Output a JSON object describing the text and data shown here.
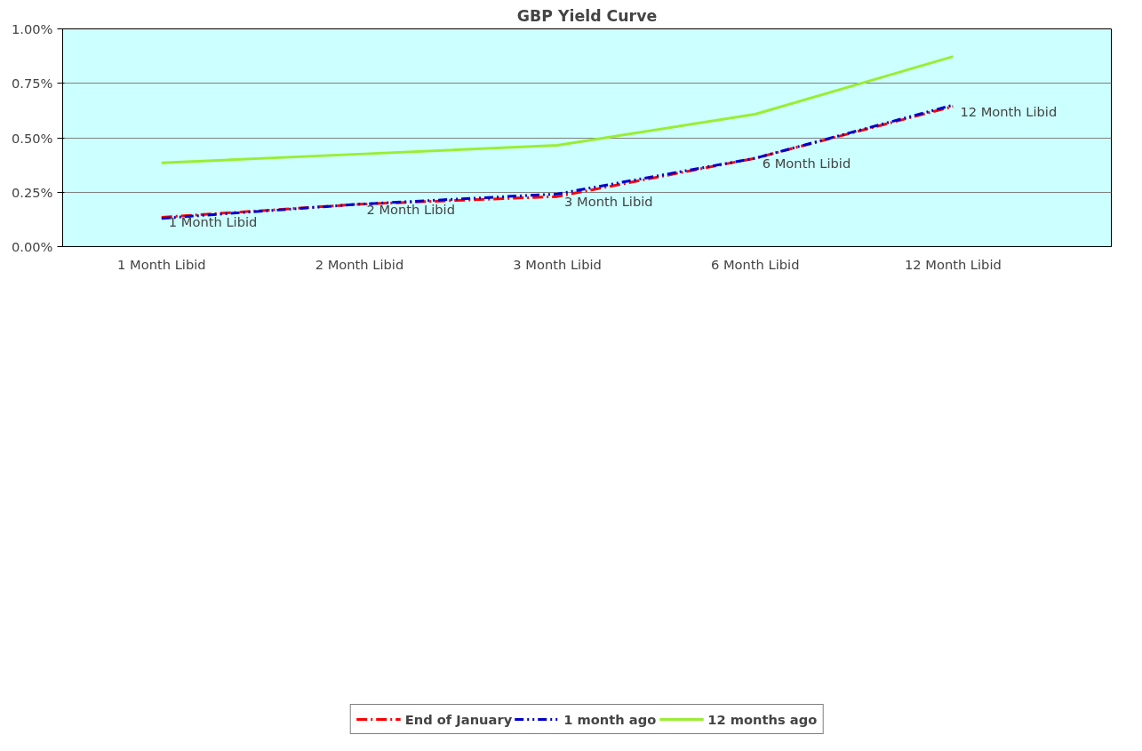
{
  "chart_data": {
    "type": "line",
    "title": "GBP Yield Curve",
    "categories": [
      "1 Month Libid",
      "2 Month Libid",
      "3 Month Libid",
      "6 Month Libid",
      "12 Month Libid"
    ],
    "series": [
      {
        "name": "End of January",
        "color": "#ff0000",
        "line_style": "dashed",
        "values": [
          0.135,
          0.195,
          0.23,
          0.406,
          0.644
        ]
      },
      {
        "name": "1 month ago",
        "color": "#0000cc",
        "line_style": "dashed",
        "values": [
          0.13,
          0.195,
          0.242,
          0.406,
          0.65
        ]
      },
      {
        "name": "12 months ago",
        "color": "#99ee33",
        "line_style": "solid",
        "values": [
          0.385,
          0.425,
          0.465,
          0.608,
          0.873
        ]
      }
    ],
    "ylim": [
      0,
      1
    ],
    "yticks": [
      {
        "value": 0,
        "label": "0.00%"
      },
      {
        "value": 0.25,
        "label": "0.25%"
      },
      {
        "value": 0.5,
        "label": "0.50%"
      },
      {
        "value": 0.75,
        "label": "0.75%"
      },
      {
        "value": 1,
        "label": "1.00%"
      }
    ],
    "grid": "y",
    "legend": "bottom",
    "marker": "none",
    "annotations": [
      {
        "text": "1 Month Libid",
        "x": "1 Month Libid",
        "y": 0.135
      },
      {
        "text": "2 Month Libid",
        "x": "2 Month Libid",
        "y": 0.195
      },
      {
        "text": "3 Month Libid",
        "x": "3 Month Libid",
        "y": 0.23
      },
      {
        "text": "6 Month Libid",
        "x": "6 Month Libid",
        "y": 0.406
      },
      {
        "text": "12 Month Libid",
        "x": "12 Month Libid",
        "y": 0.644
      }
    ]
  }
}
